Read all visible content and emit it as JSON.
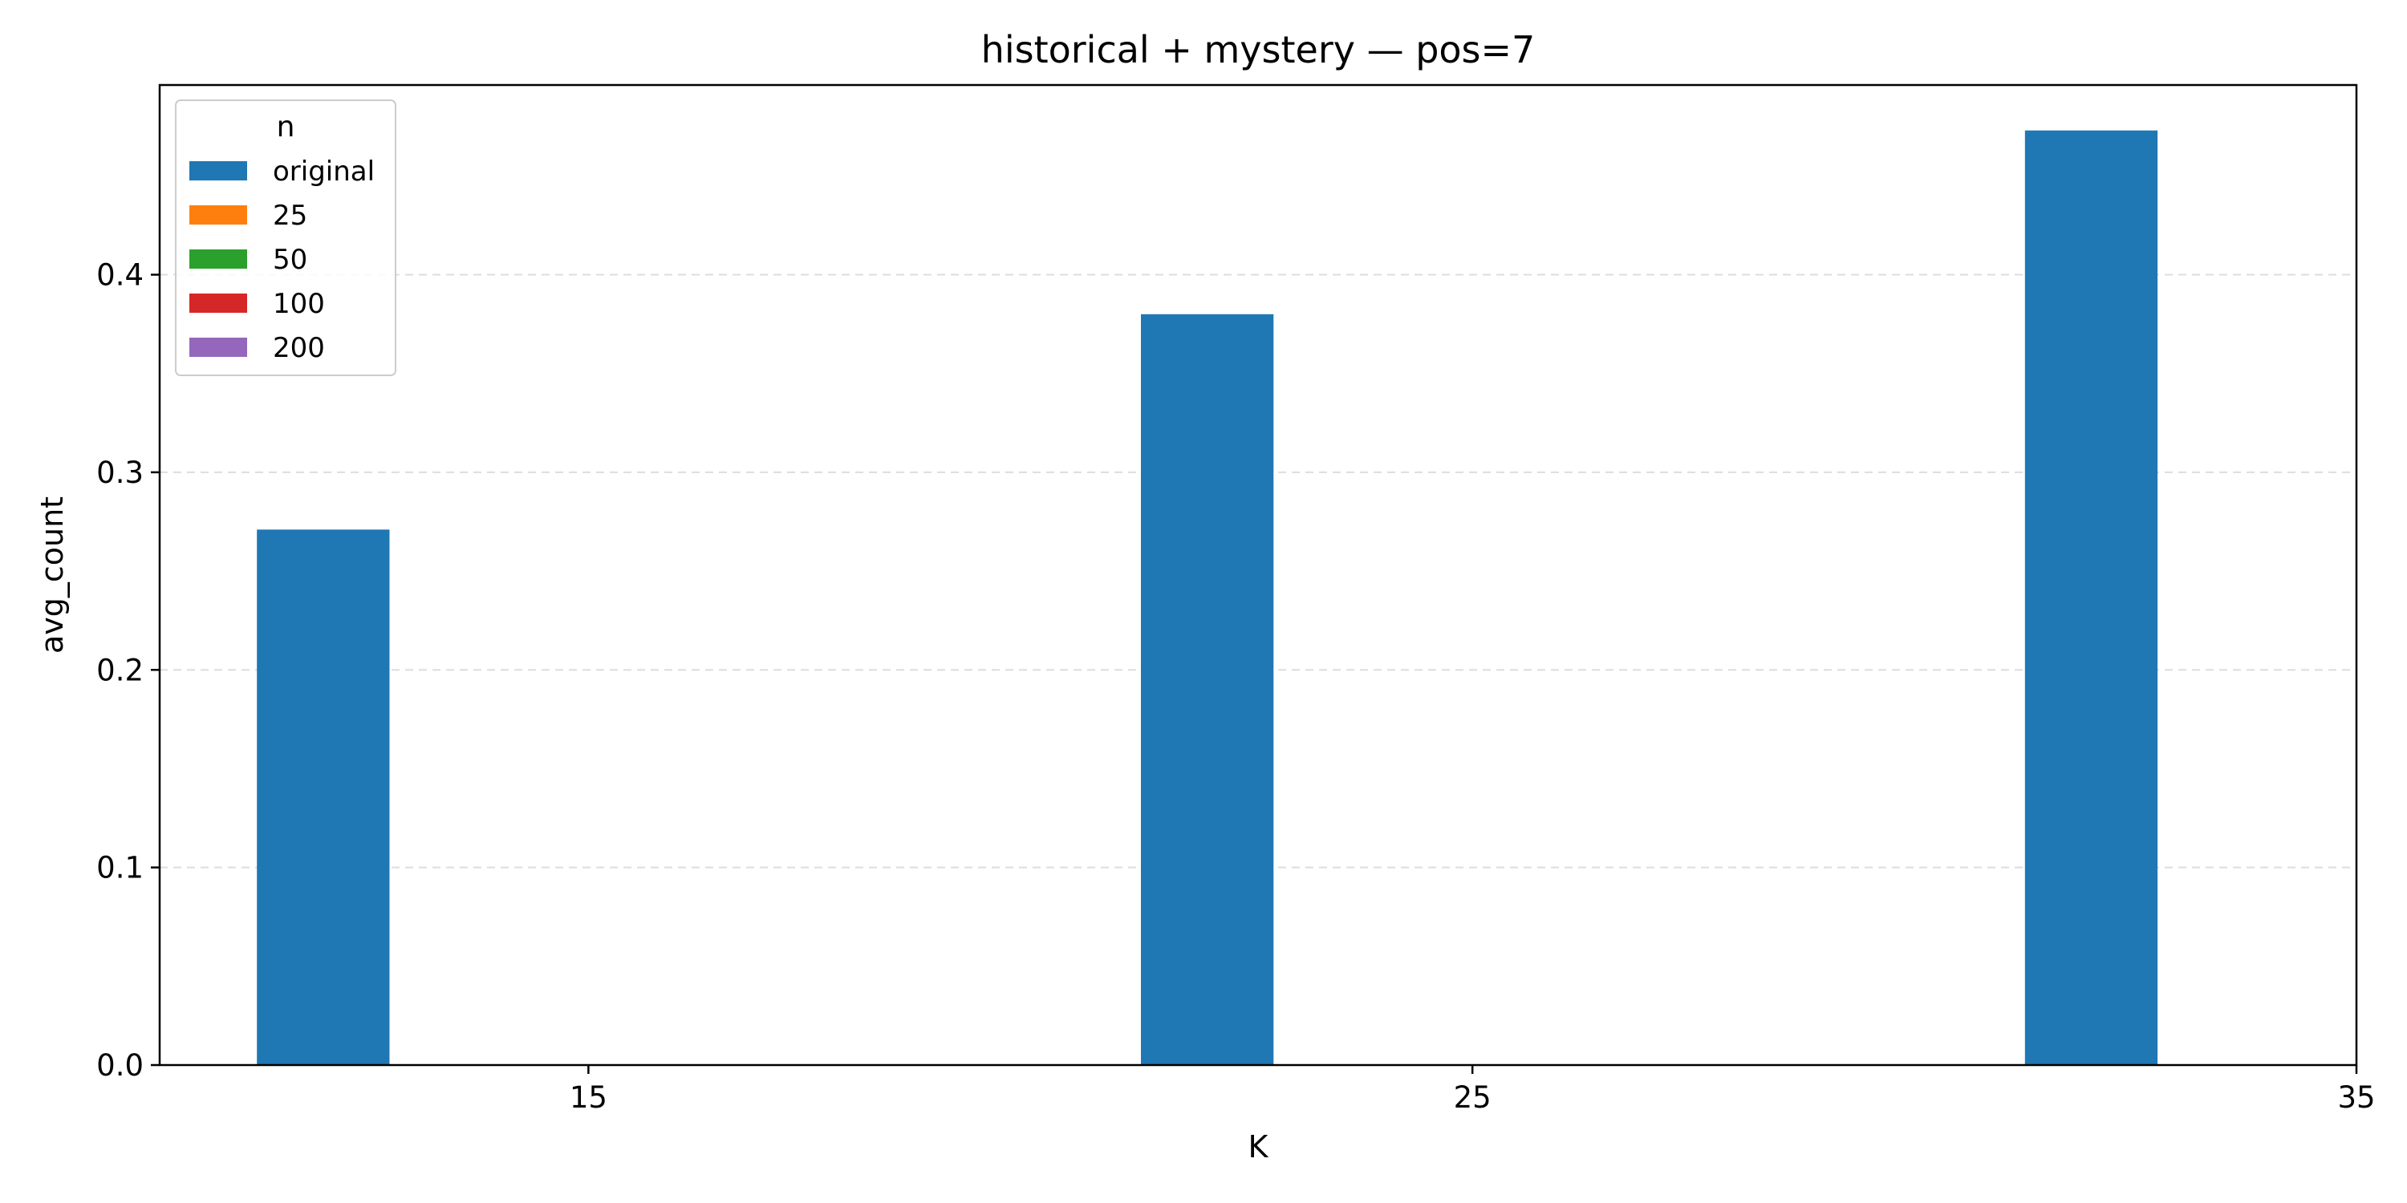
{
  "chart_data": {
    "type": "bar",
    "title": "historical + mystery — pos=7",
    "xlabel": "K",
    "ylabel": "avg_count",
    "ylim": [
      0,
      0.496
    ],
    "y_ticks": [
      0.0,
      0.1,
      0.2,
      0.3,
      0.4
    ],
    "y_tick_labels": [
      "0.0",
      "0.1",
      "0.2",
      "0.3",
      "0.4"
    ],
    "x_ticks": [
      15,
      25,
      35
    ],
    "x_tick_labels": [
      "15",
      "25",
      "35"
    ],
    "grid": "y-dashed",
    "legend": {
      "title": "n",
      "placement": "top-left",
      "entries": [
        "original",
        "25",
        "50",
        "100",
        "200"
      ]
    },
    "categories": [
      "15",
      "25",
      "35"
    ],
    "series": [
      {
        "name": "original",
        "color": "#1f77b4",
        "values": [
          0.271,
          0.38,
          0.473
        ]
      },
      {
        "name": "25",
        "color": "#ff7f0e",
        "values": [
          null,
          null,
          null
        ]
      },
      {
        "name": "50",
        "color": "#2ca02c",
        "values": [
          null,
          null,
          null
        ]
      },
      {
        "name": "100",
        "color": "#d62728",
        "values": [
          null,
          null,
          null
        ]
      },
      {
        "name": "200",
        "color": "#9467bd",
        "values": [
          null,
          null,
          null
        ]
      }
    ]
  }
}
